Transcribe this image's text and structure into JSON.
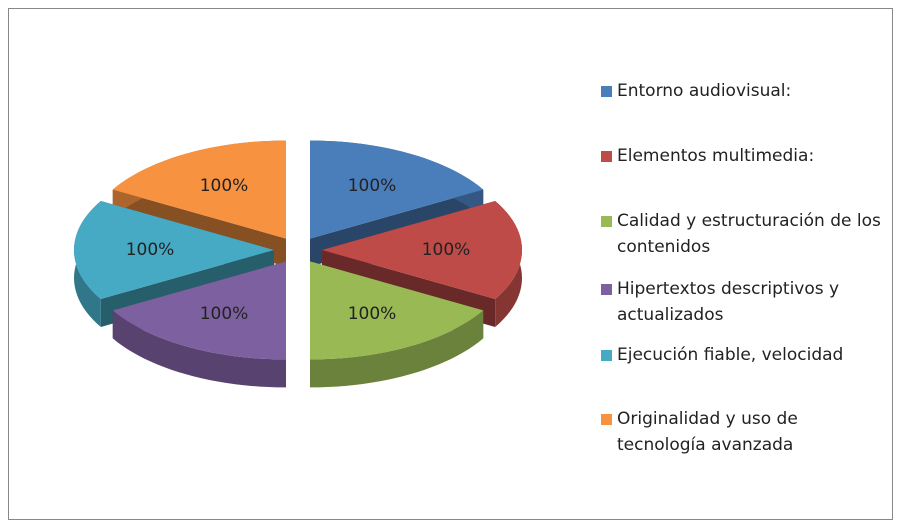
{
  "chart_data": {
    "type": "pie",
    "categories": [
      "Entorno audiovisual:",
      "Elementos multimedia:",
      "Calidad y estructuración de los contenidos",
      "Hipertextos descriptivos y actualizados",
      "Ejecución fiable, velocidad",
      "Originalidad y uso de tecnología avanzada"
    ],
    "values": [
      100,
      100,
      100,
      100,
      100,
      100
    ],
    "value_labels": [
      "100%",
      "100%",
      "100%",
      "100%",
      "100%",
      "100%"
    ],
    "colors": [
      "#4a7ebb",
      "#be4b48",
      "#98b954",
      "#7d60a0",
      "#46aac5",
      "#f69240"
    ],
    "legend": "right"
  }
}
